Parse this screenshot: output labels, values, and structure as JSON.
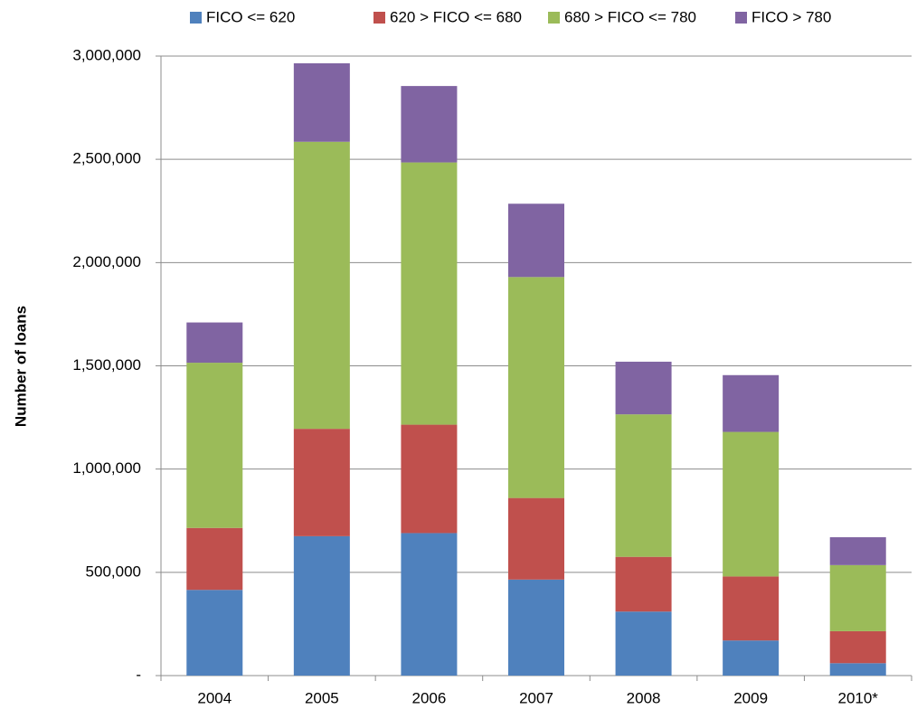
{
  "chart_data": {
    "type": "stacked_bar",
    "y_label": "Number of loans",
    "categories": [
      "2004",
      "2005",
      "2006",
      "2007",
      "2008",
      "2009",
      "2010*"
    ],
    "series": [
      {
        "name": "FICO <= 620",
        "color": "#4f81bd",
        "values": [
          415000,
          675000,
          690000,
          465000,
          310000,
          170000,
          60000
        ]
      },
      {
        "name": "620 > FICO <= 680",
        "color": "#c0504d",
        "values": [
          300000,
          520000,
          525000,
          395000,
          265000,
          310000,
          155000
        ]
      },
      {
        "name": "680 > FICO <= 780",
        "color": "#9bbb59",
        "values": [
          800000,
          1390000,
          1270000,
          1070000,
          690000,
          700000,
          320000
        ]
      },
      {
        "name": "FICO > 780",
        "color": "#8064a2",
        "values": [
          195000,
          380000,
          370000,
          355000,
          255000,
          275000,
          135000
        ]
      }
    ],
    "ylim": [
      0,
      3000000
    ],
    "yticks": [
      {
        "value": 0,
        "label": "-"
      },
      {
        "value": 500000,
        "label": "500,000"
      },
      {
        "value": 1000000,
        "label": "1,000,000"
      },
      {
        "value": 1500000,
        "label": "1,500,000"
      },
      {
        "value": 2000000,
        "label": "2,000,000"
      },
      {
        "value": 2500000,
        "label": "2,500,000"
      },
      {
        "value": 3000000,
        "label": "3,000,000"
      }
    ],
    "grid": true,
    "legend": "top"
  }
}
